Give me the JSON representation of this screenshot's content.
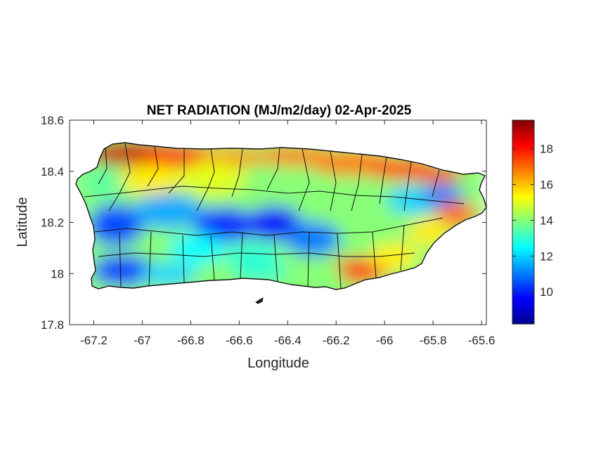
{
  "map": {
    "title": "NET RADIATION (MJ/m2/day) 02-Apr-2025",
    "xlabel": "Longitude",
    "ylabel": "Latitude",
    "xlim": [
      -67.3,
      -65.58
    ],
    "ylim": [
      17.8,
      18.6
    ],
    "xticks": [
      "-67.2",
      "-67",
      "-66.8",
      "-66.6",
      "-66.4",
      "-66.2",
      "-66",
      "-65.8",
      "-65.6"
    ],
    "xtick_values": [
      -67.2,
      -67.0,
      -66.8,
      -66.6,
      -66.4,
      -66.2,
      -66.0,
      -65.8,
      -65.6
    ],
    "yticks": [
      "18.6",
      "18.4",
      "18.2",
      "18",
      "17.8"
    ],
    "ytick_values": [
      18.6,
      18.4,
      18.2,
      18.0,
      17.8
    ],
    "region": "Puerto Rico",
    "boundaries": "municipality outlines",
    "colormap": "jet",
    "colorbar": {
      "range": [
        8.2,
        19.6
      ],
      "ticks": [
        "18",
        "16",
        "14",
        "12",
        "10"
      ],
      "tick_values": [
        18,
        16,
        14,
        12,
        10
      ]
    },
    "pattern": "high along north and southeast coasts (~17-19), low over central-west interior mountains (~9-11)"
  }
}
